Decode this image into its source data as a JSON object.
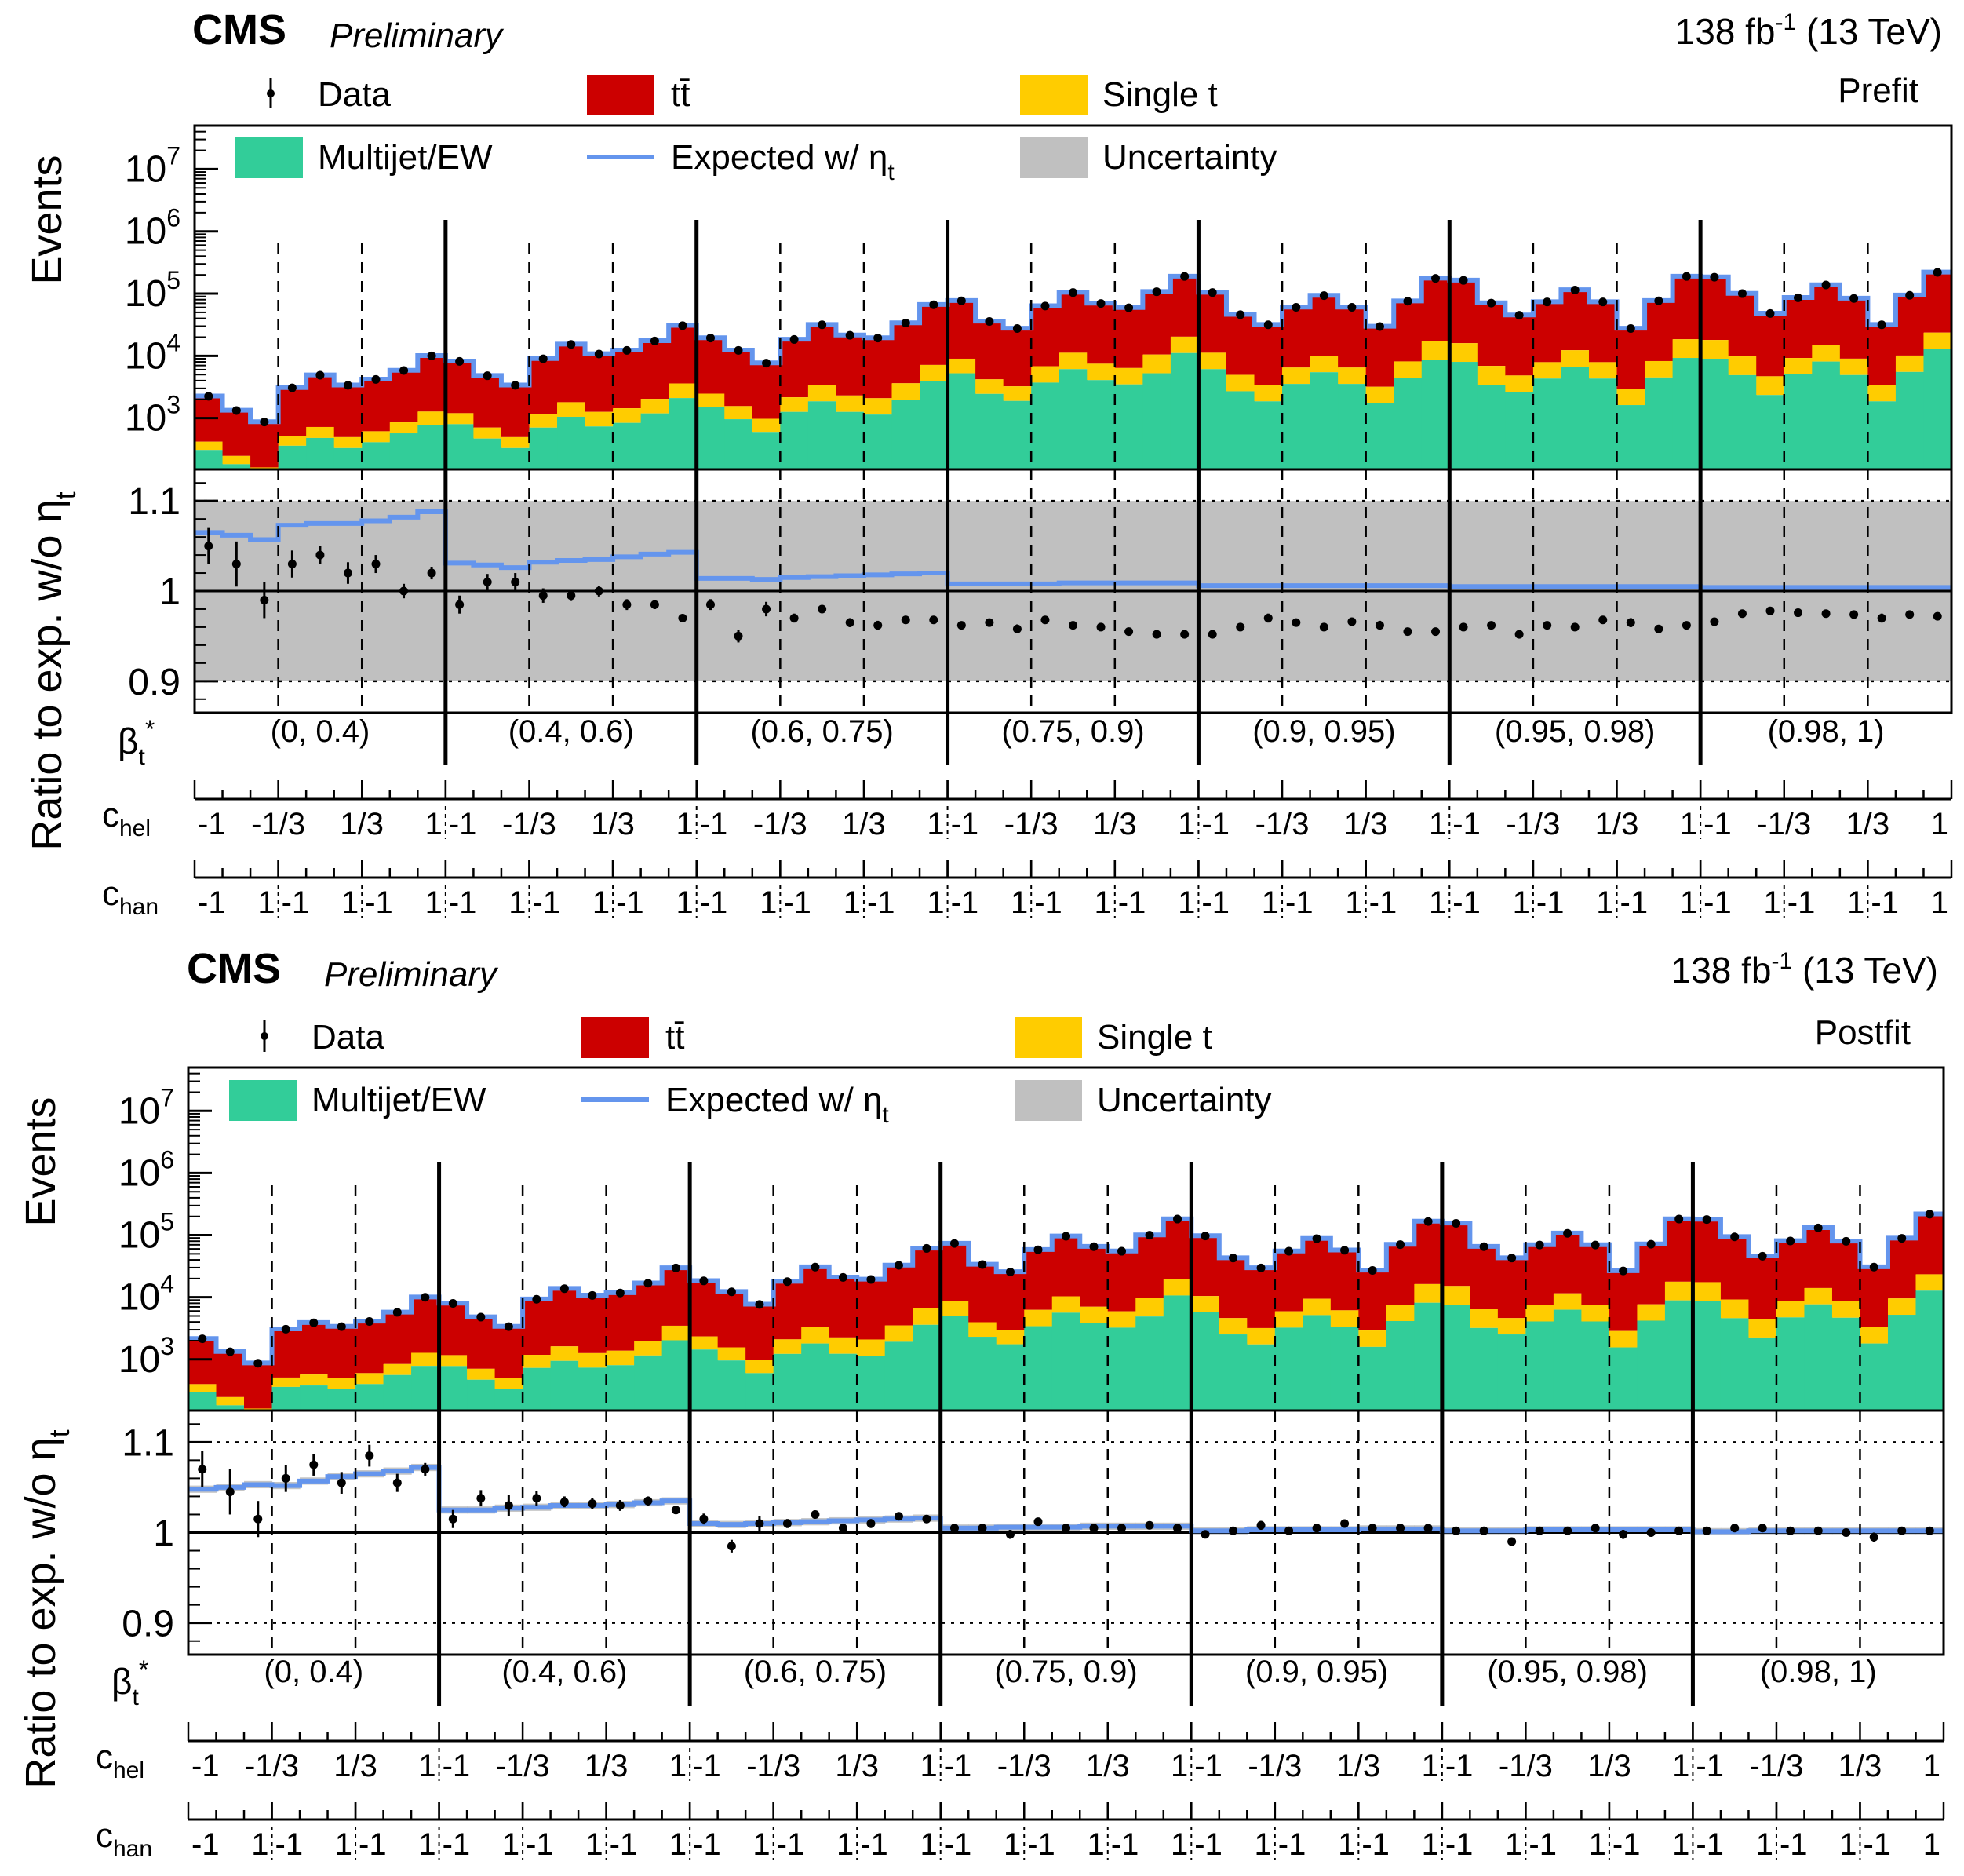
{
  "colors": {
    "multijet": "#32cd99",
    "ttbar": "#cc0000",
    "single_t": "#ffcc00",
    "expected": "#6495ed",
    "uncertainty": "#c0c0c0",
    "data": "#000000"
  },
  "panels": [
    {
      "experiment": "CMS",
      "status": "Preliminary",
      "lumi_main": "138 fb",
      "lumi_exp": "-1",
      "lumi_energy": " (13 TeV)",
      "fit_label": "Prefit",
      "legend": {
        "data": "Data",
        "ttbar": "tt̄",
        "single_t": "Single t",
        "multijet": "Multijet/EW",
        "expected_main": "Expected w/ η",
        "expected_sub": "t",
        "uncertainty": "Uncertainty"
      },
      "ylabel_top": "Events",
      "ylabel_ratio": "Ratio to exp. w/o η",
      "ylabel_ratio_sub": "t"
    },
    {
      "experiment": "CMS",
      "status": "Preliminary",
      "lumi_main": "138 fb",
      "lumi_exp": "-1",
      "lumi_energy": " (13 TeV)",
      "fit_label": "Postfit",
      "legend": {
        "data": "Data",
        "ttbar": "tt̄",
        "single_t": "Single t",
        "multijet": "Multijet/EW",
        "expected_main": "Expected w/ η",
        "expected_sub": "t",
        "uncertainty": "Uncertainty"
      },
      "ylabel_top": "Events",
      "ylabel_ratio": "Ratio to exp. w/o η",
      "ylabel_ratio_sub": "t"
    }
  ],
  "axis_labels": {
    "beta_main": "β",
    "beta_sub": "t",
    "beta_sup": "*",
    "chel_main": "c",
    "chel_sub": "hel",
    "chan_main": "c",
    "chan_sub": "han"
  },
  "beta_bins": [
    "(0, 0.4)",
    "(0.4, 0.6)",
    "(0.6, 0.75)",
    "(0.75, 0.9)",
    "(0.9, 0.95)",
    "(0.95, 0.98)",
    "(0.98, 1)"
  ],
  "chel_ticks": [
    "-1",
    "-1/3",
    "1/3",
    "1"
  ],
  "chan_ticks": [
    "-1",
    "1"
  ],
  "chart_data": [
    {
      "type": "bar",
      "stacked": true,
      "ylog": true,
      "yticks_top": [
        {
          "base": "10",
          "exp": "3"
        },
        {
          "base": "10",
          "exp": "4"
        },
        {
          "base": "10",
          "exp": "5"
        },
        {
          "base": "10",
          "exp": "6"
        },
        {
          "base": "10",
          "exp": "7"
        }
      ],
      "ylim_top": [
        150,
        50000000
      ],
      "ratio_ylim": [
        0.865,
        1.135
      ],
      "ratio_yticks": [
        "0.9",
        "1",
        "1.1"
      ],
      "n_bins": 63,
      "total": [
        2200,
        1300,
        850,
        3000,
        4800,
        3300,
        4100,
        5700,
        9800,
        8000,
        4700,
        3300,
        8800,
        15000,
        10500,
        12000,
        17000,
        30000,
        19000,
        12000,
        7500,
        18000,
        31000,
        21000,
        19000,
        33000,
        65000,
        75000,
        35000,
        27000,
        62000,
        102000,
        68000,
        58000,
        105000,
        185000,
        102000,
        45000,
        31000,
        59000,
        91000,
        59000,
        29000,
        74000,
        172000,
        160000,
        69000,
        44000,
        72000,
        112000,
        72000,
        27000,
        75000,
        185000,
        180000,
        98000,
        47000,
        84000,
        135000,
        82000,
        31000,
        92000,
        215000
      ],
      "multijet_frac": [
        0.14,
        0.14,
        0.14,
        0.12,
        0.1,
        0.1,
        0.1,
        0.1,
        0.08,
        0.1,
        0.1,
        0.1,
        0.08,
        0.07,
        0.07,
        0.07,
        0.07,
        0.07,
        0.08,
        0.08,
        0.08,
        0.07,
        0.06,
        0.06,
        0.06,
        0.06,
        0.06,
        0.07,
        0.07,
        0.07,
        0.06,
        0.06,
        0.06,
        0.06,
        0.05,
        0.06,
        0.06,
        0.06,
        0.06,
        0.06,
        0.06,
        0.06,
        0.06,
        0.06,
        0.05,
        0.05,
        0.05,
        0.06,
        0.06,
        0.06,
        0.06,
        0.06,
        0.06,
        0.05,
        0.05,
        0.05,
        0.05,
        0.06,
        0.06,
        0.06,
        0.06,
        0.06,
        0.06
      ],
      "single_t_frac": [
        0.05,
        0.05,
        0.05,
        0.05,
        0.05,
        0.05,
        0.05,
        0.05,
        0.05,
        0.05,
        0.05,
        0.05,
        0.05,
        0.05,
        0.05,
        0.05,
        0.05,
        0.05,
        0.05,
        0.05,
        0.05,
        0.05,
        0.05,
        0.05,
        0.05,
        0.05,
        0.05,
        0.05,
        0.05,
        0.05,
        0.05,
        0.05,
        0.05,
        0.05,
        0.05,
        0.05,
        0.05,
        0.05,
        0.05,
        0.05,
        0.05,
        0.05,
        0.05,
        0.05,
        0.05,
        0.05,
        0.05,
        0.05,
        0.05,
        0.05,
        0.05,
        0.05,
        0.05,
        0.05,
        0.05,
        0.05,
        0.05,
        0.05,
        0.05,
        0.05,
        0.05,
        0.05,
        0.05
      ],
      "expected_ratio": [
        1.065,
        1.062,
        1.057,
        1.073,
        1.075,
        1.075,
        1.078,
        1.082,
        1.088,
        1.031,
        1.029,
        1.026,
        1.032,
        1.034,
        1.035,
        1.038,
        1.041,
        1.043,
        1.014,
        1.014,
        1.013,
        1.015,
        1.016,
        1.017,
        1.018,
        1.019,
        1.02,
        1.008,
        1.008,
        1.008,
        1.008,
        1.009,
        1.009,
        1.009,
        1.009,
        1.009,
        1.006,
        1.006,
        1.006,
        1.006,
        1.006,
        1.006,
        1.006,
        1.006,
        1.006,
        1.005,
        1.005,
        1.005,
        1.005,
        1.005,
        1.005,
        1.005,
        1.005,
        1.005,
        1.004,
        1.004,
        1.004,
        1.004,
        1.004,
        1.004,
        1.004,
        1.004,
        1.004
      ],
      "uncertainty_half": 0.1,
      "data_ratio": [
        1.05,
        1.03,
        0.99,
        1.03,
        1.04,
        1.02,
        1.03,
        1.0,
        1.02,
        0.985,
        1.01,
        1.01,
        0.995,
        0.995,
        1.0,
        0.985,
        0.985,
        0.97,
        0.985,
        0.95,
        0.98,
        0.97,
        0.98,
        0.965,
        0.962,
        0.968,
        0.968,
        0.962,
        0.965,
        0.958,
        0.968,
        0.962,
        0.96,
        0.955,
        0.952,
        0.952,
        0.952,
        0.96,
        0.97,
        0.965,
        0.96,
        0.966,
        0.962,
        0.955,
        0.955,
        0.96,
        0.962,
        0.952,
        0.962,
        0.96,
        0.968,
        0.965,
        0.958,
        0.962,
        0.966,
        0.975,
        0.978,
        0.976,
        0.975,
        0.974,
        0.97,
        0.974,
        0.972
      ],
      "data_err": [
        0.02,
        0.025,
        0.02,
        0.015,
        0.01,
        0.012,
        0.01,
        0.008,
        0.007,
        0.01,
        0.009,
        0.01,
        0.008,
        0.006,
        0.006,
        0.006,
        0.005,
        0.004,
        0.006,
        0.007,
        0.008,
        0.005,
        0.004,
        0.005,
        0.005,
        0.004,
        0.003,
        0.003,
        0.004,
        0.005,
        0.003,
        0.003,
        0.003,
        0.003,
        0.002,
        0.002,
        0.003,
        0.004,
        0.005,
        0.003,
        0.003,
        0.003,
        0.005,
        0.003,
        0.002,
        0.002,
        0.003,
        0.004,
        0.003,
        0.003,
        0.003,
        0.005,
        0.003,
        0.002,
        0.002,
        0.003,
        0.004,
        0.003,
        0.003,
        0.003,
        0.005,
        0.003,
        0.002
      ]
    },
    {
      "type": "bar",
      "stacked": true,
      "ylog": true,
      "yticks_top": [
        {
          "base": "10",
          "exp": "3"
        },
        {
          "base": "10",
          "exp": "4"
        },
        {
          "base": "10",
          "exp": "5"
        },
        {
          "base": "10",
          "exp": "6"
        },
        {
          "base": "10",
          "exp": "7"
        }
      ],
      "ylim_top": [
        150,
        50000000
      ],
      "ratio_ylim": [
        0.865,
        1.135
      ],
      "ratio_yticks": [
        "0.9",
        "1",
        "1.1"
      ],
      "n_bins": 63,
      "total": [
        2100,
        1300,
        850,
        3000,
        3800,
        3300,
        4000,
        5600,
        9800,
        7800,
        4700,
        3300,
        9100,
        13500,
        10500,
        11500,
        16500,
        29000,
        18000,
        12000,
        7500,
        17500,
        30000,
        20500,
        19000,
        32000,
        60000,
        72000,
        33000,
        25000,
        57000,
        94000,
        64000,
        54000,
        98000,
        178000,
        95000,
        42000,
        29000,
        54000,
        86000,
        56000,
        26500,
        69000,
        163000,
        152000,
        64000,
        42000,
        68000,
        105000,
        68000,
        26000,
        70000,
        178000,
        175000,
        92000,
        45000,
        79000,
        128000,
        78000,
        30000,
        87000,
        213000
      ],
      "multijet_frac": [
        0.14,
        0.14,
        0.14,
        0.12,
        0.1,
        0.1,
        0.1,
        0.1,
        0.08,
        0.1,
        0.1,
        0.1,
        0.08,
        0.07,
        0.07,
        0.07,
        0.07,
        0.07,
        0.08,
        0.08,
        0.08,
        0.07,
        0.06,
        0.06,
        0.06,
        0.06,
        0.06,
        0.07,
        0.07,
        0.07,
        0.06,
        0.06,
        0.06,
        0.06,
        0.05,
        0.06,
        0.06,
        0.06,
        0.06,
        0.06,
        0.06,
        0.06,
        0.06,
        0.06,
        0.05,
        0.05,
        0.05,
        0.06,
        0.06,
        0.06,
        0.06,
        0.06,
        0.06,
        0.05,
        0.05,
        0.05,
        0.05,
        0.06,
        0.06,
        0.06,
        0.06,
        0.06,
        0.06
      ],
      "single_t_frac": [
        0.05,
        0.05,
        0.05,
        0.05,
        0.05,
        0.05,
        0.05,
        0.05,
        0.05,
        0.05,
        0.05,
        0.05,
        0.05,
        0.05,
        0.05,
        0.05,
        0.05,
        0.05,
        0.05,
        0.05,
        0.05,
        0.05,
        0.05,
        0.05,
        0.05,
        0.05,
        0.05,
        0.05,
        0.05,
        0.05,
        0.05,
        0.05,
        0.05,
        0.05,
        0.05,
        0.05,
        0.05,
        0.05,
        0.05,
        0.05,
        0.05,
        0.05,
        0.05,
        0.05,
        0.05,
        0.05,
        0.05,
        0.05,
        0.05,
        0.05,
        0.05,
        0.05,
        0.05,
        0.05,
        0.05,
        0.05,
        0.05,
        0.05,
        0.05,
        0.05,
        0.05,
        0.05,
        0.05
      ],
      "expected_ratio": [
        1.048,
        1.05,
        1.053,
        1.052,
        1.057,
        1.062,
        1.065,
        1.068,
        1.072,
        1.025,
        1.025,
        1.027,
        1.028,
        1.03,
        1.03,
        1.031,
        1.033,
        1.035,
        1.01,
        1.009,
        1.01,
        1.011,
        1.012,
        1.013,
        1.014,
        1.015,
        1.016,
        1.005,
        1.005,
        1.006,
        1.006,
        1.006,
        1.007,
        1.007,
        1.007,
        1.007,
        1.002,
        1.002,
        1.003,
        1.003,
        1.003,
        1.003,
        1.004,
        1.004,
        1.004,
        1.002,
        1.002,
        1.002,
        1.003,
        1.003,
        1.003,
        1.003,
        1.003,
        1.003,
        1.001,
        1.001,
        1.002,
        1.002,
        1.002,
        1.002,
        1.002,
        1.002,
        1.002
      ],
      "uncertainty_half": 0.004,
      "data_ratio": [
        1.07,
        1.045,
        1.015,
        1.06,
        1.075,
        1.055,
        1.085,
        1.055,
        1.07,
        1.015,
        1.038,
        1.03,
        1.038,
        1.034,
        1.032,
        1.03,
        1.035,
        1.025,
        1.015,
        0.985,
        1.01,
        1.01,
        1.02,
        1.005,
        1.01,
        1.018,
        1.015,
        1.005,
        1.005,
        0.998,
        1.012,
        1.005,
        1.005,
        1.005,
        1.008,
        1.005,
        0.998,
        1.002,
        1.008,
        1.002,
        1.005,
        1.01,
        1.005,
        1.005,
        1.005,
        1.002,
        1.002,
        0.99,
        1.002,
        1.002,
        1.005,
        0.998,
        1.0,
        1.002,
        1.002,
        1.005,
        1.005,
        1.002,
        1.002,
        1.0,
        0.995,
        1.002,
        1.002
      ],
      "data_err": [
        0.02,
        0.025,
        0.02,
        0.015,
        0.012,
        0.012,
        0.012,
        0.01,
        0.007,
        0.01,
        0.009,
        0.012,
        0.008,
        0.006,
        0.006,
        0.006,
        0.005,
        0.004,
        0.006,
        0.007,
        0.008,
        0.005,
        0.004,
        0.005,
        0.005,
        0.004,
        0.003,
        0.003,
        0.004,
        0.005,
        0.003,
        0.003,
        0.003,
        0.003,
        0.002,
        0.002,
        0.003,
        0.004,
        0.005,
        0.003,
        0.003,
        0.003,
        0.005,
        0.003,
        0.002,
        0.002,
        0.003,
        0.004,
        0.003,
        0.003,
        0.003,
        0.005,
        0.003,
        0.002,
        0.002,
        0.003,
        0.004,
        0.003,
        0.003,
        0.003,
        0.005,
        0.003,
        0.002
      ]
    }
  ]
}
